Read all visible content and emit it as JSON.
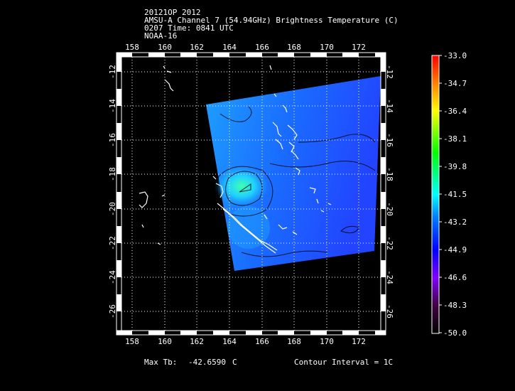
{
  "header": {
    "storm": "20121OP 2012",
    "product": "AMSU-A Channel 7 (54.94GHz) Brightness Temperature (C)",
    "time": "0207 Time: 0841 UTC",
    "satellite": "NOAA-16"
  },
  "map": {
    "lon_ticks": [
      "158",
      "160",
      "162",
      "164",
      "166",
      "168",
      "170",
      "172"
    ],
    "lat_ticks": [
      "-12",
      "-14",
      "-16",
      "-18",
      "-20",
      "-22",
      "-24",
      "-26"
    ],
    "lon_range": [
      157.3,
      173.5
    ],
    "lat_range": [
      -11.2,
      -27.2
    ],
    "grid": true
  },
  "colorbar": {
    "labels": [
      "-33.0",
      "-34.7",
      "-36.4",
      "-38.1",
      "-39.8",
      "-41.5",
      "-43.2",
      "-44.9",
      "-46.6",
      "-48.3",
      "-50.0"
    ],
    "max": -33.0,
    "min": -50.0,
    "colors": [
      "#ff0000",
      "#ff8000",
      "#ffff00",
      "#00ff00",
      "#00ffff",
      "#0050ff",
      "#0000ff",
      "#8000ff",
      "#400040",
      "#000000"
    ]
  },
  "footer": {
    "max_label": "Max Tb:",
    "max_value": "-42.6590",
    "max_unit": "C",
    "contour": "Contour Interval = 1C"
  }
}
